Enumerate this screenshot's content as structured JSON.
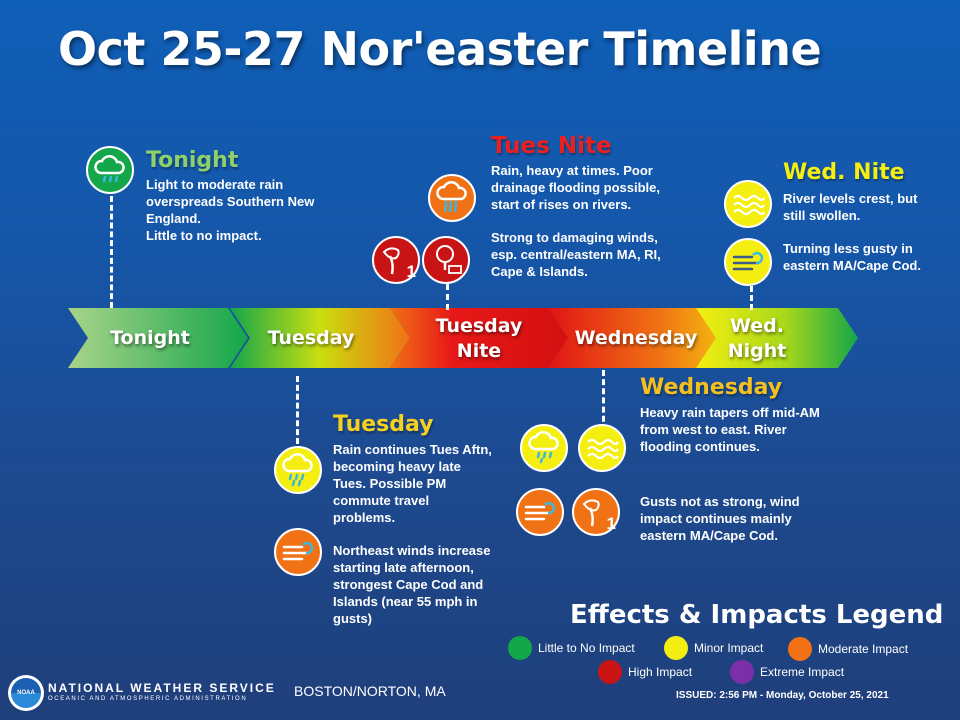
{
  "title": "Oct 25-27 Nor'easter Timeline",
  "colors": {
    "little": "#14a64a",
    "minor": "#f4ef10",
    "moderate": "#f07214",
    "high": "#c81414",
    "extreme": "#7b2fa8"
  },
  "timeline": {
    "segments": [
      {
        "label": "Tonight"
      },
      {
        "label": "Tuesday"
      },
      {
        "label": "Tuesday\nNite"
      },
      {
        "label": "Wednesday"
      },
      {
        "label": "Wed.\nNight"
      }
    ]
  },
  "periods": {
    "tonight": {
      "heading": "Tonight",
      "text": [
        "Light to moderate rain overspreads Southern New England.",
        "Little to no impact."
      ]
    },
    "tuesday": {
      "heading": "Tuesday",
      "p1": "Rain continues Tues Aftn, becoming heavy late Tues. Possible PM commute travel problems.",
      "p2": "Northeast winds increase starting late afternoon, strongest Cape Cod and Islands (near 55 mph in gusts)"
    },
    "tues_nite": {
      "heading": "Tues Nite",
      "p1": "Rain, heavy at times. Poor drainage flooding possible, start of rises on rivers.",
      "p2": "Strong to damaging winds, esp. central/eastern MA, RI, Cape & Islands."
    },
    "wednesday": {
      "heading": "Wednesday",
      "p1": "Heavy rain tapers off mid-AM from west to east. River flooding continues.",
      "p2": "Gusts not as strong, wind impact continues mainly eastern MA/Cape Cod."
    },
    "wed_nite": {
      "heading": "Wed. Nite",
      "p1": "River levels crest, but still swollen.",
      "p2": "Turning less gusty in eastern MA/Cape Cod."
    }
  },
  "icons": {
    "tonight_rain": "rain-cloud-icon",
    "tuesday_rain": "rain-cloud-icon",
    "tuesday_wind": "wind-icon",
    "tuesnite_rain": "heavy-rain-cloud-icon",
    "tuesnite_tree1": "bent-tree-icon",
    "tuesnite_tree2": "fallen-tree-icon",
    "wed_rain": "rain-cloud-icon",
    "wed_flood": "water-waves-icon",
    "wed_wind": "wind-icon",
    "wed_tree": "bent-tree-icon",
    "wednite_flood": "water-waves-icon",
    "wednite_wind": "wind-icon"
  },
  "legend": {
    "title": "Effects & Impacts Legend",
    "items": [
      {
        "label": "Little to No Impact"
      },
      {
        "label": "Minor Impact"
      },
      {
        "label": "Moderate Impact"
      },
      {
        "label": "High Impact"
      },
      {
        "label": "Extreme Impact"
      }
    ]
  },
  "footer": {
    "agency": "NATIONAL WEATHER SERVICE",
    "sub": "OCEANIC AND ATMOSPHERIC ADMINISTRATION",
    "office": "BOSTON/NORTON, MA",
    "issued": "ISSUED: 2:56 PM - Monday, October 25, 2021",
    "logo_text": "NOAA"
  },
  "badge_digit": "1"
}
